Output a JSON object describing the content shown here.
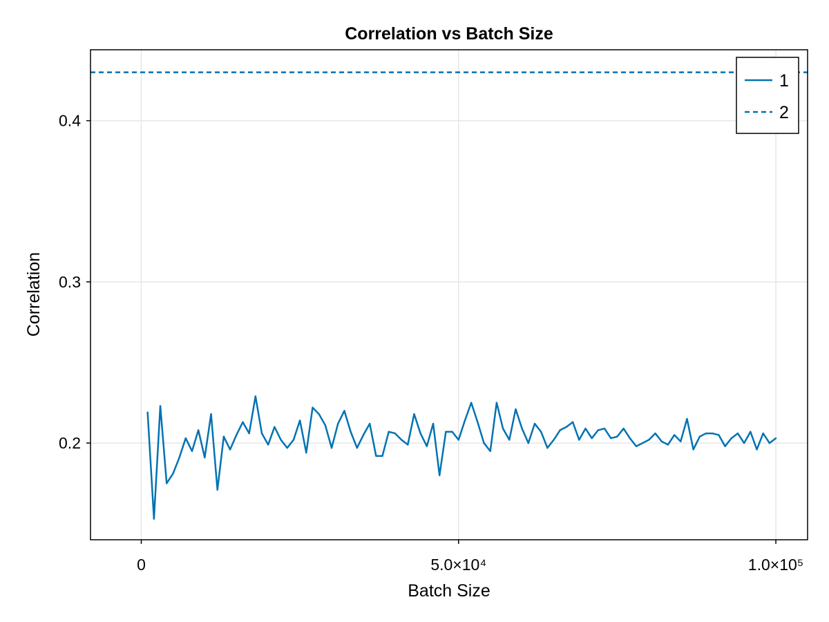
{
  "chart_data": {
    "type": "line",
    "title": "Correlation vs Batch Size",
    "xlabel": "Batch Size",
    "ylabel": "Correlation",
    "xlim": [
      -8000,
      105000
    ],
    "ylim": [
      0.14,
      0.444
    ],
    "x_ticks": [
      {
        "value": 0,
        "label": "0"
      },
      {
        "value": 50000,
        "label": "5.0×10⁴"
      },
      {
        "value": 100000,
        "label": "1.0×10⁵"
      }
    ],
    "y_ticks": [
      {
        "value": 0.2,
        "label": "0.2"
      },
      {
        "value": 0.3,
        "label": "0.3"
      },
      {
        "value": 0.4,
        "label": "0.4"
      }
    ],
    "grid": true,
    "legend_position": "top-right",
    "series": [
      {
        "name": "1",
        "style": "solid",
        "color": "#0072b2",
        "x": [
          1000,
          2000,
          3000,
          4000,
          5000,
          6000,
          7000,
          8000,
          9000,
          10000,
          11000,
          12000,
          13000,
          14000,
          15000,
          16000,
          17000,
          18000,
          19000,
          20000,
          21000,
          22000,
          23000,
          24000,
          25000,
          26000,
          27000,
          28000,
          29000,
          30000,
          31000,
          32000,
          33000,
          34000,
          35000,
          36000,
          37000,
          38000,
          39000,
          40000,
          41000,
          42000,
          43000,
          44000,
          45000,
          46000,
          47000,
          48000,
          49000,
          50000,
          51000,
          52000,
          53000,
          54000,
          55000,
          56000,
          57000,
          58000,
          59000,
          60000,
          61000,
          62000,
          63000,
          64000,
          65000,
          66000,
          67000,
          68000,
          69000,
          70000,
          71000,
          72000,
          73000,
          74000,
          75000,
          76000,
          77000,
          78000,
          79000,
          80000,
          81000,
          82000,
          83000,
          84000,
          85000,
          86000,
          87000,
          88000,
          89000,
          90000,
          91000,
          92000,
          93000,
          94000,
          95000,
          96000,
          97000,
          98000,
          99000,
          100000
        ],
        "y": [
          0.219,
          0.153,
          0.223,
          0.175,
          0.181,
          0.191,
          0.203,
          0.195,
          0.208,
          0.191,
          0.218,
          0.171,
          0.204,
          0.196,
          0.205,
          0.213,
          0.206,
          0.229,
          0.206,
          0.199,
          0.21,
          0.202,
          0.197,
          0.202,
          0.214,
          0.194,
          0.222,
          0.218,
          0.211,
          0.197,
          0.212,
          0.22,
          0.207,
          0.197,
          0.205,
          0.212,
          0.192,
          0.192,
          0.207,
          0.206,
          0.202,
          0.199,
          0.218,
          0.206,
          0.198,
          0.212,
          0.18,
          0.207,
          0.207,
          0.202,
          0.214,
          0.225,
          0.213,
          0.2,
          0.195,
          0.225,
          0.209,
          0.202,
          0.221,
          0.209,
          0.2,
          0.212,
          0.207,
          0.197,
          0.202,
          0.208,
          0.21,
          0.213,
          0.202,
          0.209,
          0.203,
          0.208,
          0.209,
          0.203,
          0.204,
          0.209,
          0.203,
          0.198,
          0.2,
          0.202,
          0.206,
          0.201,
          0.199,
          0.205,
          0.201,
          0.215,
          0.196,
          0.204,
          0.206,
          0.206,
          0.205,
          0.198,
          0.203,
          0.206,
          0.2,
          0.207,
          0.196,
          0.206,
          0.2,
          0.203
        ]
      },
      {
        "name": "2",
        "style": "dashed",
        "color": "#0072b2",
        "x": [
          -8000,
          105000
        ],
        "y": [
          0.43,
          0.43
        ]
      }
    ]
  }
}
